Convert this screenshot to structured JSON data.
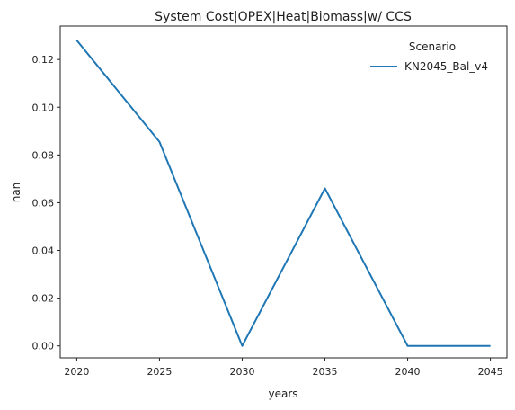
{
  "chart_data": {
    "type": "line",
    "title": "System Cost|OPEX|Heat|Biomass|w/ CCS",
    "xlabel": "years",
    "ylabel": "nan",
    "x": [
      2020,
      2025,
      2030,
      2035,
      2040,
      2045
    ],
    "xticks": [
      "2020",
      "2025",
      "2030",
      "2035",
      "2040",
      "2045"
    ],
    "yticks": [
      "0.00",
      "0.02",
      "0.04",
      "0.06",
      "0.08",
      "0.10",
      "0.12"
    ],
    "ylim": [
      -0.005,
      0.134
    ],
    "xlim": [
      2019,
      2046
    ],
    "grid": false,
    "legend": {
      "title": "Scenario",
      "placement": "top-right"
    },
    "series": [
      {
        "name": "KN2045_Bal_v4",
        "color": "#1f77b4",
        "values": [
          0.128,
          0.0855,
          0.0,
          0.066,
          0.0,
          0.0
        ]
      }
    ]
  }
}
